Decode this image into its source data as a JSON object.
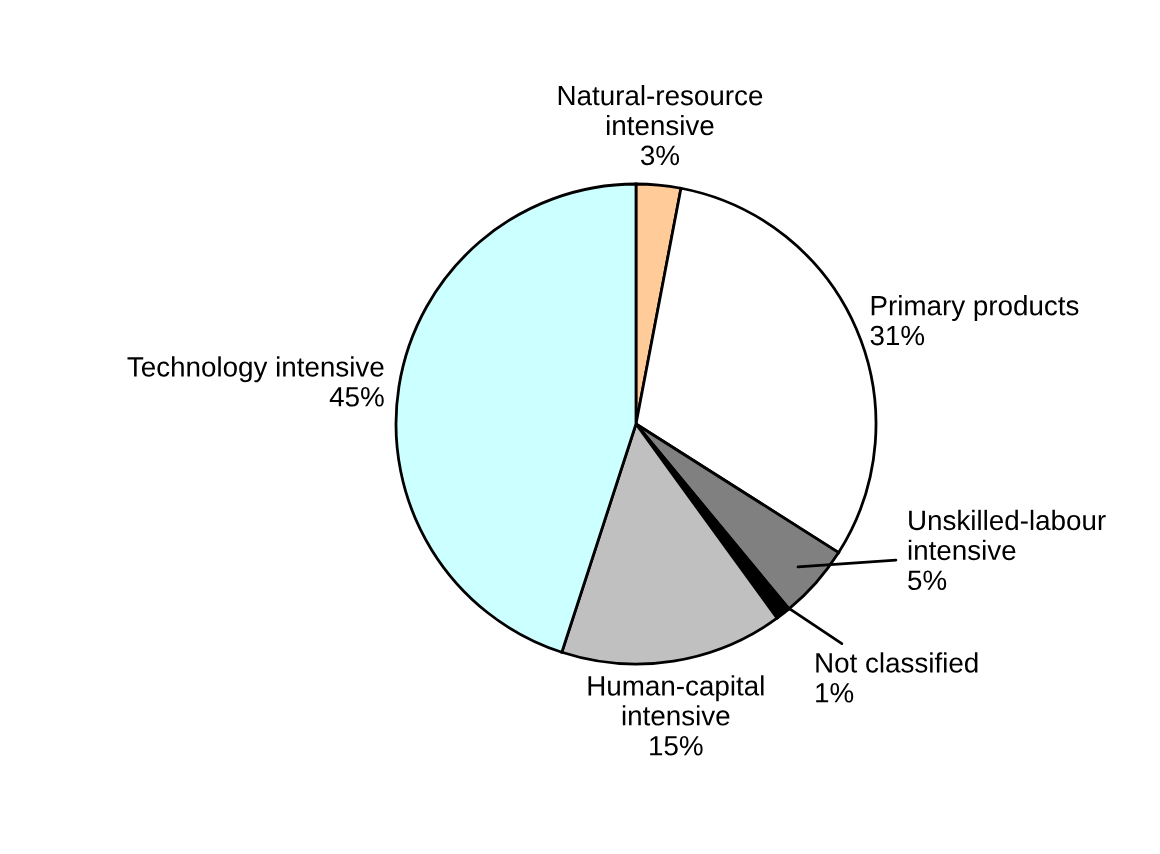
{
  "chart_data": {
    "type": "pie",
    "categories": [
      "Natural-resource\nintensive",
      "Primary products",
      "Unskilled-labour\nintensive",
      "Not classified",
      "Human-capital\nintensive",
      "Technology intensive"
    ],
    "values": [
      3,
      31,
      5,
      1,
      15,
      45
    ],
    "value_labels": [
      "3%",
      "31%",
      "5%",
      "1%",
      "15%",
      "45%"
    ],
    "colors": [
      "#ffcc99",
      "#ffffff",
      "#808080",
      "#000000",
      "#c0c0c0",
      "#ccffff"
    ],
    "legend": false
  }
}
